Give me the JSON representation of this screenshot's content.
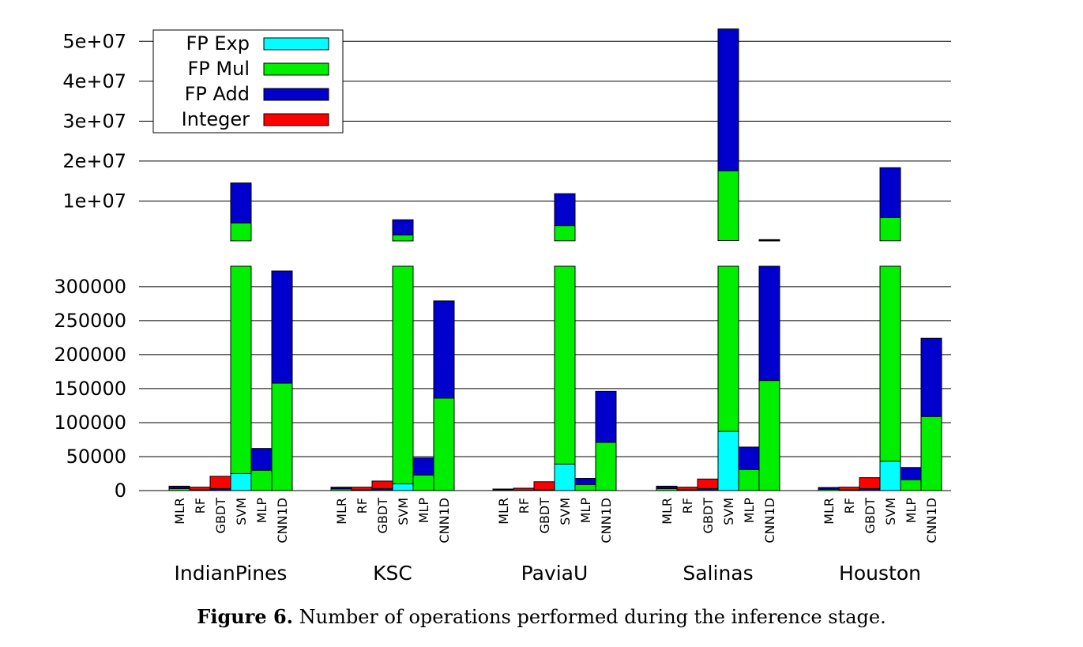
{
  "caption": {
    "label": "Figure 6.",
    "text": "Number of operations performed during the inference stage."
  },
  "chart_data": {
    "type": "bar",
    "stacked": true,
    "axis_break": true,
    "groups": [
      "IndianPines",
      "KSC",
      "PaviaU",
      "Salinas",
      "Houston"
    ],
    "models": [
      "MLR",
      "RF",
      "GBDT",
      "SVM",
      "MLP",
      "CNN1D"
    ],
    "series": [
      {
        "name": "Integer",
        "color": "#ff0000"
      },
      {
        "name": "FP Add",
        "color": "#0000cc"
      },
      {
        "name": "FP Mul",
        "color": "#00ee00"
      },
      {
        "name": "FP Exp",
        "color": "#00ffff"
      }
    ],
    "legend_order": [
      "FP Exp",
      "FP Mul",
      "FP Add",
      "Integer"
    ],
    "legend_position": "top-left",
    "lower_axis": {
      "ylim": [
        0,
        330000
      ],
      "ticks": [
        0,
        50000,
        100000,
        150000,
        200000,
        250000,
        300000
      ],
      "tick_labels": [
        "0",
        "50000",
        "100000",
        "150000",
        "200000",
        "250000",
        "300000"
      ]
    },
    "upper_axis": {
      "ylim": [
        0,
        55000000
      ],
      "ticks": [
        10000000,
        20000000,
        30000000,
        40000000,
        50000000
      ],
      "tick_labels": [
        "1e+07",
        "2e+07",
        "3e+07",
        "4e+07",
        "5e+07"
      ]
    },
    "grid": true,
    "values": {
      "IndianPines": {
        "MLR": {
          "Integer": 500,
          "FP Add": 3000,
          "FP Mul": 3000,
          "FP Exp": 0
        },
        "RF": {
          "Integer": 4000,
          "FP Add": 1000,
          "FP Mul": 0,
          "FP Exp": 0
        },
        "GBDT": {
          "Integer": 18000,
          "FP Add": 3000,
          "FP Mul": 0,
          "FP Exp": 0
        },
        "SVM": {
          "Integer": 0,
          "FP Add": 10000000,
          "FP Mul": 4500000,
          "FP Exp": 25000
        },
        "MLP": {
          "Integer": 0,
          "FP Add": 32000,
          "FP Mul": 30000,
          "FP Exp": 0
        },
        "CNN1D": {
          "Integer": 0,
          "FP Add": 165000,
          "FP Mul": 158000,
          "FP Exp": 0
        }
      },
      "KSC": {
        "MLR": {
          "Integer": 500,
          "FP Add": 2000,
          "FP Mul": 2500,
          "FP Exp": 0
        },
        "RF": {
          "Integer": 4000,
          "FP Add": 1000,
          "FP Mul": 0,
          "FP Exp": 0
        },
        "GBDT": {
          "Integer": 11000,
          "FP Add": 3000,
          "FP Mul": 0,
          "FP Exp": 0
        },
        "SVM": {
          "Integer": 0,
          "FP Add": 3800000,
          "FP Mul": 1500000,
          "FP Exp": 10000
        },
        "MLP": {
          "Integer": 0,
          "FP Add": 25000,
          "FP Mul": 23000,
          "FP Exp": 0
        },
        "CNN1D": {
          "Integer": 0,
          "FP Add": 143000,
          "FP Mul": 136000,
          "FP Exp": 0
        }
      },
      "PaviaU": {
        "MLR": {
          "Integer": 300,
          "FP Add": 1000,
          "FP Mul": 1000,
          "FP Exp": 0
        },
        "RF": {
          "Integer": 3000,
          "FP Add": 500,
          "FP Mul": 0,
          "FP Exp": 0
        },
        "GBDT": {
          "Integer": 12000,
          "FP Add": 1000,
          "FP Mul": 0,
          "FP Exp": 0
        },
        "SVM": {
          "Integer": 0,
          "FP Add": 8000000,
          "FP Mul": 3800000,
          "FP Exp": 39000
        },
        "MLP": {
          "Integer": 0,
          "FP Add": 9000,
          "FP Mul": 9000,
          "FP Exp": 0
        },
        "CNN1D": {
          "Integer": 0,
          "FP Add": 75000,
          "FP Mul": 71000,
          "FP Exp": 0
        }
      },
      "Salinas": {
        "MLR": {
          "Integer": 500,
          "FP Add": 3000,
          "FP Mul": 3000,
          "FP Exp": 0
        },
        "RF": {
          "Integer": 4000,
          "FP Add": 1000,
          "FP Mul": 0,
          "FP Exp": 0
        },
        "GBDT": {
          "Integer": 14000,
          "FP Add": 3000,
          "FP Mul": 0,
          "FP Exp": 0
        },
        "SVM": {
          "Integer": 0,
          "FP Add": 35500000,
          "FP Mul": 17500000,
          "FP Exp": 87000
        },
        "MLP": {
          "Integer": 0,
          "FP Add": 33000,
          "FP Mul": 31000,
          "FP Exp": 0
        },
        "CNN1D": {
          "Integer": 0,
          "FP Add": 169000,
          "FP Mul": 162000,
          "FP Exp": 0
        }
      },
      "Houston": {
        "MLR": {
          "Integer": 500,
          "FP Add": 2000,
          "FP Mul": 2000,
          "FP Exp": 0
        },
        "RF": {
          "Integer": 4000,
          "FP Add": 1000,
          "FP Mul": 0,
          "FP Exp": 0
        },
        "GBDT": {
          "Integer": 16000,
          "FP Add": 3000,
          "FP Mul": 0,
          "FP Exp": 0
        },
        "SVM": {
          "Integer": 0,
          "FP Add": 12500000,
          "FP Mul": 5800000,
          "FP Exp": 43000
        },
        "MLP": {
          "Integer": 0,
          "FP Add": 18000,
          "FP Mul": 16000,
          "FP Exp": 0
        },
        "CNN1D": {
          "Integer": 0,
          "FP Add": 115000,
          "FP Mul": 109000,
          "FP Exp": 0
        }
      }
    }
  }
}
